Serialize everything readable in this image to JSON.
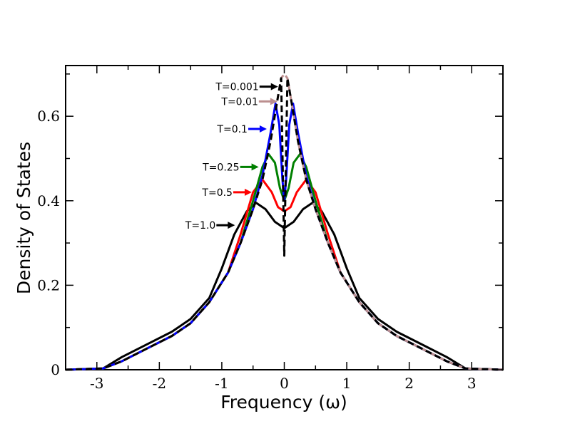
{
  "chart_data": {
    "type": "line",
    "title": "",
    "xlabel": "Frequency (ω)",
    "ylabel": "Density of States",
    "xlim": [
      -3.5,
      3.5
    ],
    "ylim": [
      0,
      0.72
    ],
    "x_ticks": [
      -3,
      -2,
      -1,
      0,
      1,
      2,
      3
    ],
    "x_tick_labels": [
      "-3",
      "-2",
      "-1",
      "0",
      "1",
      "2",
      "3"
    ],
    "y_ticks": [
      0,
      0.2,
      0.4,
      0.6
    ],
    "y_tick_labels": [
      "0",
      "0.2",
      "0.4",
      "0.6"
    ],
    "grid": false,
    "series": [
      {
        "name": "T=1.0",
        "color": "#000000",
        "style": "solid",
        "x": [
          -3.5,
          -2.9,
          -2.6,
          -2.2,
          -1.8,
          -1.5,
          -1.2,
          -1.0,
          -0.8,
          -0.6,
          -0.45,
          -0.3,
          -0.15,
          0,
          0.15,
          0.3,
          0.45,
          0.6,
          0.8,
          1.0,
          1.2,
          1.5,
          1.8,
          2.2,
          2.6,
          2.9,
          3.5
        ],
        "y": [
          0.0,
          0.003,
          0.03,
          0.06,
          0.09,
          0.12,
          0.17,
          0.24,
          0.32,
          0.375,
          0.395,
          0.38,
          0.35,
          0.335,
          0.35,
          0.38,
          0.395,
          0.375,
          0.32,
          0.24,
          0.17,
          0.12,
          0.09,
          0.06,
          0.03,
          0.003,
          0.0
        ]
      },
      {
        "name": "T=0.5",
        "color": "#ff0000",
        "style": "solid",
        "x": [
          -3.5,
          -2.9,
          -2.6,
          -2.2,
          -1.8,
          -1.5,
          -1.2,
          -0.9,
          -0.7,
          -0.5,
          -0.35,
          -0.2,
          -0.1,
          0,
          0.1,
          0.2,
          0.35,
          0.5,
          0.7,
          0.9,
          1.2,
          1.5,
          1.8,
          2.2,
          2.6,
          2.9,
          3.5
        ],
        "y": [
          0.0,
          0.003,
          0.02,
          0.05,
          0.08,
          0.11,
          0.16,
          0.23,
          0.32,
          0.42,
          0.45,
          0.42,
          0.385,
          0.375,
          0.385,
          0.42,
          0.45,
          0.42,
          0.32,
          0.23,
          0.16,
          0.11,
          0.08,
          0.05,
          0.02,
          0.003,
          0.0
        ]
      },
      {
        "name": "T=0.25",
        "color": "#008000",
        "style": "solid",
        "x": [
          -3.5,
          -2.9,
          -2.6,
          -2.2,
          -1.8,
          -1.5,
          -1.2,
          -0.9,
          -0.7,
          -0.5,
          -0.35,
          -0.25,
          -0.15,
          -0.07,
          0,
          0.07,
          0.15,
          0.25,
          0.35,
          0.5,
          0.7,
          0.9,
          1.2,
          1.5,
          1.8,
          2.2,
          2.6,
          2.9,
          3.5
        ],
        "y": [
          0.0,
          0.003,
          0.02,
          0.05,
          0.08,
          0.11,
          0.16,
          0.23,
          0.3,
          0.4,
          0.48,
          0.51,
          0.49,
          0.43,
          0.4,
          0.43,
          0.49,
          0.51,
          0.48,
          0.4,
          0.3,
          0.23,
          0.16,
          0.11,
          0.08,
          0.05,
          0.02,
          0.003,
          0.0
        ]
      },
      {
        "name": "T=0.1",
        "color": "#0000ff",
        "style": "solid",
        "x": [
          -3.5,
          -2.9,
          -2.6,
          -2.2,
          -1.8,
          -1.5,
          -1.2,
          -0.9,
          -0.7,
          -0.5,
          -0.35,
          -0.22,
          -0.14,
          -0.08,
          -0.03,
          0,
          0.03,
          0.08,
          0.14,
          0.22,
          0.35,
          0.5,
          0.7,
          0.9,
          1.2,
          1.5,
          1.8,
          2.2,
          2.6,
          2.9,
          3.5
        ],
        "y": [
          0.0,
          0.003,
          0.02,
          0.05,
          0.08,
          0.11,
          0.16,
          0.23,
          0.3,
          0.38,
          0.46,
          0.56,
          0.63,
          0.58,
          0.45,
          0.4,
          0.45,
          0.58,
          0.63,
          0.56,
          0.46,
          0.38,
          0.3,
          0.23,
          0.16,
          0.11,
          0.08,
          0.05,
          0.02,
          0.003,
          0.0
        ]
      },
      {
        "name": "T=0.01",
        "color": "#bc8f8f",
        "style": "dashed",
        "x": [
          -3.5,
          -2.9,
          -2.6,
          -2.2,
          -1.8,
          -1.5,
          -1.2,
          -0.9,
          -0.7,
          -0.5,
          -0.35,
          -0.22,
          -0.12,
          -0.05,
          0,
          0.05,
          0.12,
          0.22,
          0.35,
          0.5,
          0.7,
          0.9,
          1.2,
          1.5,
          1.8,
          2.2,
          2.6,
          2.9,
          3.5
        ],
        "y": [
          0.0,
          0.003,
          0.02,
          0.05,
          0.08,
          0.11,
          0.16,
          0.23,
          0.3,
          0.38,
          0.45,
          0.54,
          0.63,
          0.69,
          0.7,
          0.69,
          0.63,
          0.54,
          0.45,
          0.38,
          0.3,
          0.23,
          0.16,
          0.11,
          0.08,
          0.05,
          0.02,
          0.003,
          0.0
        ]
      },
      {
        "name": "T=0.001",
        "color": "#000000",
        "style": "dashed",
        "x": [
          -3.5,
          -2.9,
          -2.6,
          -2.2,
          -1.8,
          -1.5,
          -1.2,
          -0.9,
          -0.7,
          -0.5,
          -0.35,
          -0.22,
          -0.12,
          -0.05,
          0,
          0.05,
          0.12,
          0.22,
          0.35,
          0.5,
          0.7,
          0.9,
          1.2,
          1.5,
          1.8,
          2.2,
          2.6,
          2.9,
          3.5
        ],
        "y": [
          0.0,
          0.003,
          0.02,
          0.05,
          0.08,
          0.11,
          0.16,
          0.23,
          0.3,
          0.38,
          0.45,
          0.54,
          0.63,
          0.69,
          0.27,
          0.69,
          0.63,
          0.54,
          0.45,
          0.38,
          0.3,
          0.23,
          0.16,
          0.11,
          0.08,
          0.05,
          0.02,
          0.003,
          0.0
        ]
      }
    ],
    "annotations": [
      {
        "text": "T=0.001",
        "series": "T=0.001",
        "arrow_to": [
          -0.1,
          0.67
        ],
        "color": "#000000"
      },
      {
        "text": "T=0.01",
        "series": "T=0.01",
        "arrow_to": [
          -0.11,
          0.635
        ],
        "color": "#bc8f8f"
      },
      {
        "text": "T=0.1",
        "series": "T=0.1",
        "arrow_to": [
          -0.28,
          0.57
        ],
        "color": "#0000ff"
      },
      {
        "text": "T=0.25",
        "series": "T=0.25",
        "arrow_to": [
          -0.41,
          0.48
        ],
        "color": "#008000"
      },
      {
        "text": "T=0.5",
        "series": "T=0.5",
        "arrow_to": [
          -0.52,
          0.42
        ],
        "color": "#ff0000"
      },
      {
        "text": "T=1.0",
        "series": "T=1.0",
        "arrow_to": [
          -0.79,
          0.342
        ],
        "color": "#000000"
      }
    ]
  }
}
